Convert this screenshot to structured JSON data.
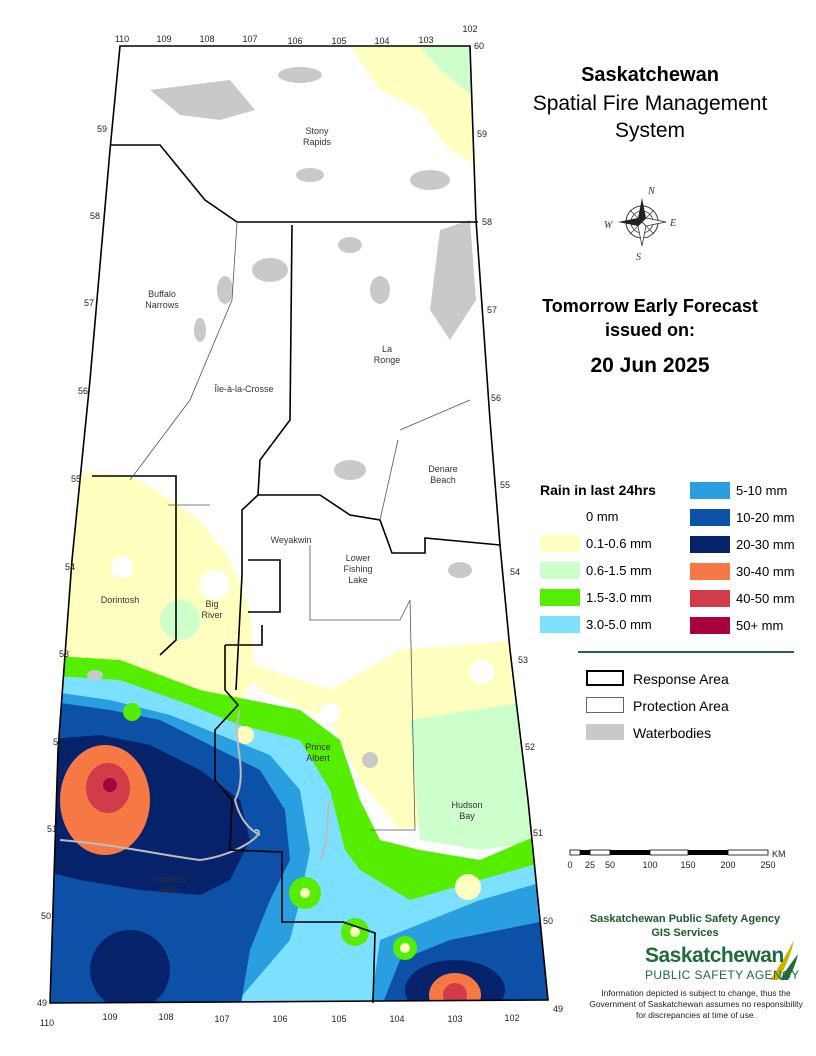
{
  "header": {
    "title_line1": "Saskatchewan",
    "title_line2": "Spatial Fire Management",
    "title_line3": "System"
  },
  "forecast": {
    "line1": "Tomorrow Early Forecast",
    "line2": "issued on:",
    "date": "20 Jun 2025"
  },
  "compass": {
    "n": "N",
    "s": "S",
    "e": "E",
    "w": "W",
    "icon": "compass-rose-icon"
  },
  "rain_legend": {
    "title": "Rain in last 24hrs",
    "items": [
      {
        "label": "0 mm",
        "color": "#ffffff"
      },
      {
        "label": "0.1-0.6 mm",
        "color": "#ffffc0"
      },
      {
        "label": "0.6-1.5 mm",
        "color": "#ccffcc"
      },
      {
        "label": "1.5-3.0 mm",
        "color": "#55ee00"
      },
      {
        "label": "3.0-5.0 mm",
        "color": "#7ee0ff"
      },
      {
        "label": "5-10 mm",
        "color": "#2a9fe0"
      },
      {
        "label": "10-20 mm",
        "color": "#0c50a8"
      },
      {
        "label": "20-30 mm",
        "color": "#05226a"
      },
      {
        "label": "30-40 mm",
        "color": "#f57845"
      },
      {
        "label": "40-50 mm",
        "color": "#d23b4a"
      },
      {
        "label": "50+ mm",
        "color": "#a8003d"
      }
    ]
  },
  "area_legend": {
    "response": "Response Area",
    "protection": "Protection Area",
    "waterbodies": "Waterbodies"
  },
  "scale": {
    "ticks": [
      "0",
      "25",
      "50",
      "100",
      "150",
      "200",
      "250"
    ],
    "unit": "KM"
  },
  "footer": {
    "agency": "Saskatchewan Public Safety Agency",
    "division": "GIS  Services",
    "logo_top": "Saskatchewan",
    "logo_bottom": "PUBLIC SAFETY AGENCY",
    "disclaimer": "Information depicted is subject to change, thus the Government of Saskatchewan assumes no responsibility for discrepancies at time of use."
  },
  "map": {
    "places": [
      "Stony Rapids",
      "Buffalo Narrows",
      "Île-à-la-Crosse",
      "La Ronge",
      "Denare Beach",
      "Weyakwin",
      "Lower Fishing Lake",
      "Dorintosh",
      "Big River",
      "Prince Albert",
      "Hudson Bay",
      "Cypress Hills"
    ],
    "longitudes_top": [
      "110",
      "109",
      "108",
      "107",
      "106",
      "105",
      "104",
      "103",
      "102"
    ],
    "longitudes_bottom": [
      "110",
      "109",
      "108",
      "107",
      "106",
      "105",
      "104",
      "103",
      "102"
    ],
    "latitudes": [
      "60",
      "59",
      "58",
      "57",
      "56",
      "55",
      "54",
      "53",
      "52",
      "51",
      "50",
      "49"
    ]
  }
}
